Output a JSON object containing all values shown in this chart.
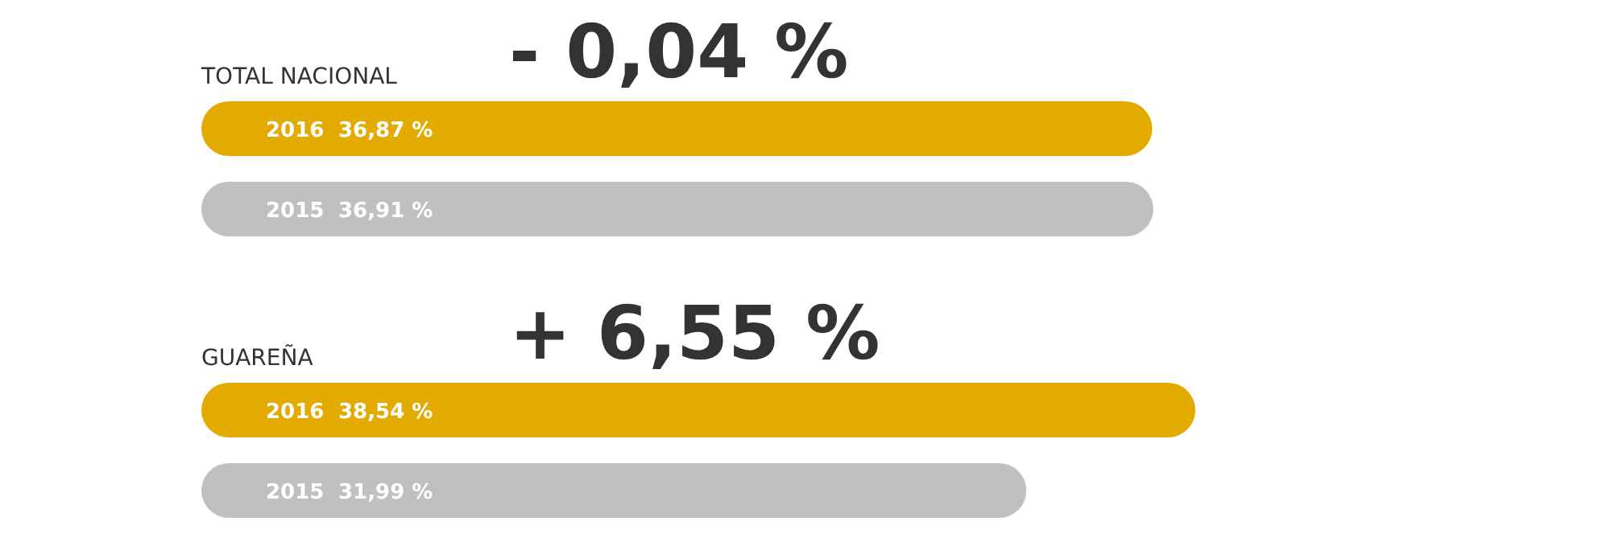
{
  "chart_data": [
    {
      "type": "bar",
      "orientation": "horizontal",
      "title": "TOTAL NACIONAL",
      "annotations": [
        "- 0,04 %"
      ],
      "categories": [
        "2016",
        "2015"
      ],
      "values": [
        36.87,
        36.91
      ],
      "colors": [
        "#e3ab00",
        "#c0c0c0"
      ],
      "value_labels": [
        "36,87 %",
        "36,91 %"
      ]
    },
    {
      "type": "bar",
      "orientation": "horizontal",
      "title": "GUAREÑA",
      "annotations": [
        "+ 6,55 %"
      ],
      "categories": [
        "2016",
        "2015"
      ],
      "values": [
        38.54,
        31.99
      ],
      "colors": [
        "#e3ab00",
        "#c0c0c0"
      ],
      "value_labels": [
        "38,54 %",
        "31,99 %"
      ]
    }
  ]
}
